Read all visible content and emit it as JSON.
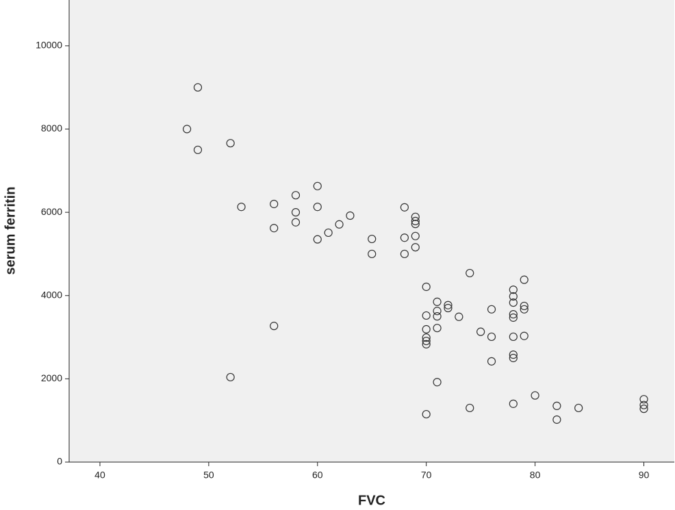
{
  "chart_data": {
    "type": "scatter",
    "x_label": "FVC",
    "y_label": "serum ferritin",
    "xlim": [
      37.17,
      92.8
    ],
    "ylim": [
      0,
      11100
    ],
    "xticks": [
      40,
      50,
      60,
      70,
      80,
      90
    ],
    "yticks": [
      0,
      2000,
      4000,
      6000,
      8000,
      10000
    ],
    "color": "#333333",
    "x": [
      48,
      49,
      49,
      52,
      53,
      56,
      56,
      56,
      52,
      58,
      58,
      58,
      60,
      60,
      60,
      61,
      62,
      63,
      65,
      65,
      68,
      68,
      68,
      69,
      69,
      69,
      69,
      69,
      70,
      70,
      70,
      70,
      70,
      70,
      70,
      71,
      71,
      71,
      71,
      71,
      72,
      72,
      73,
      74,
      74,
      75,
      76,
      76,
      76,
      78,
      78,
      78,
      78,
      78,
      78,
      78,
      78,
      78,
      79,
      79,
      79,
      79,
      80,
      82,
      82,
      84,
      90,
      90,
      90
    ],
    "y": [
      8000,
      9000,
      7500,
      7660,
      6130,
      6200,
      5620,
      3270,
      2040,
      6410,
      6000,
      5760,
      6630,
      6130,
      5350,
      5510,
      5710,
      5920,
      5360,
      5000,
      6120,
      5390,
      5000,
      5890,
      5790,
      5720,
      5430,
      5160,
      4210,
      3520,
      3190,
      2990,
      2910,
      2830,
      1150,
      3850,
      3630,
      3500,
      3220,
      1920,
      3770,
      3700,
      3490,
      4540,
      1300,
      3130,
      3670,
      3010,
      2420,
      4140,
      3980,
      3830,
      3550,
      3470,
      3010,
      2580,
      2500,
      1400,
      4380,
      3750,
      3670,
      3030,
      1600,
      1350,
      1020,
      1300,
      1510,
      1370,
      1280
    ]
  }
}
